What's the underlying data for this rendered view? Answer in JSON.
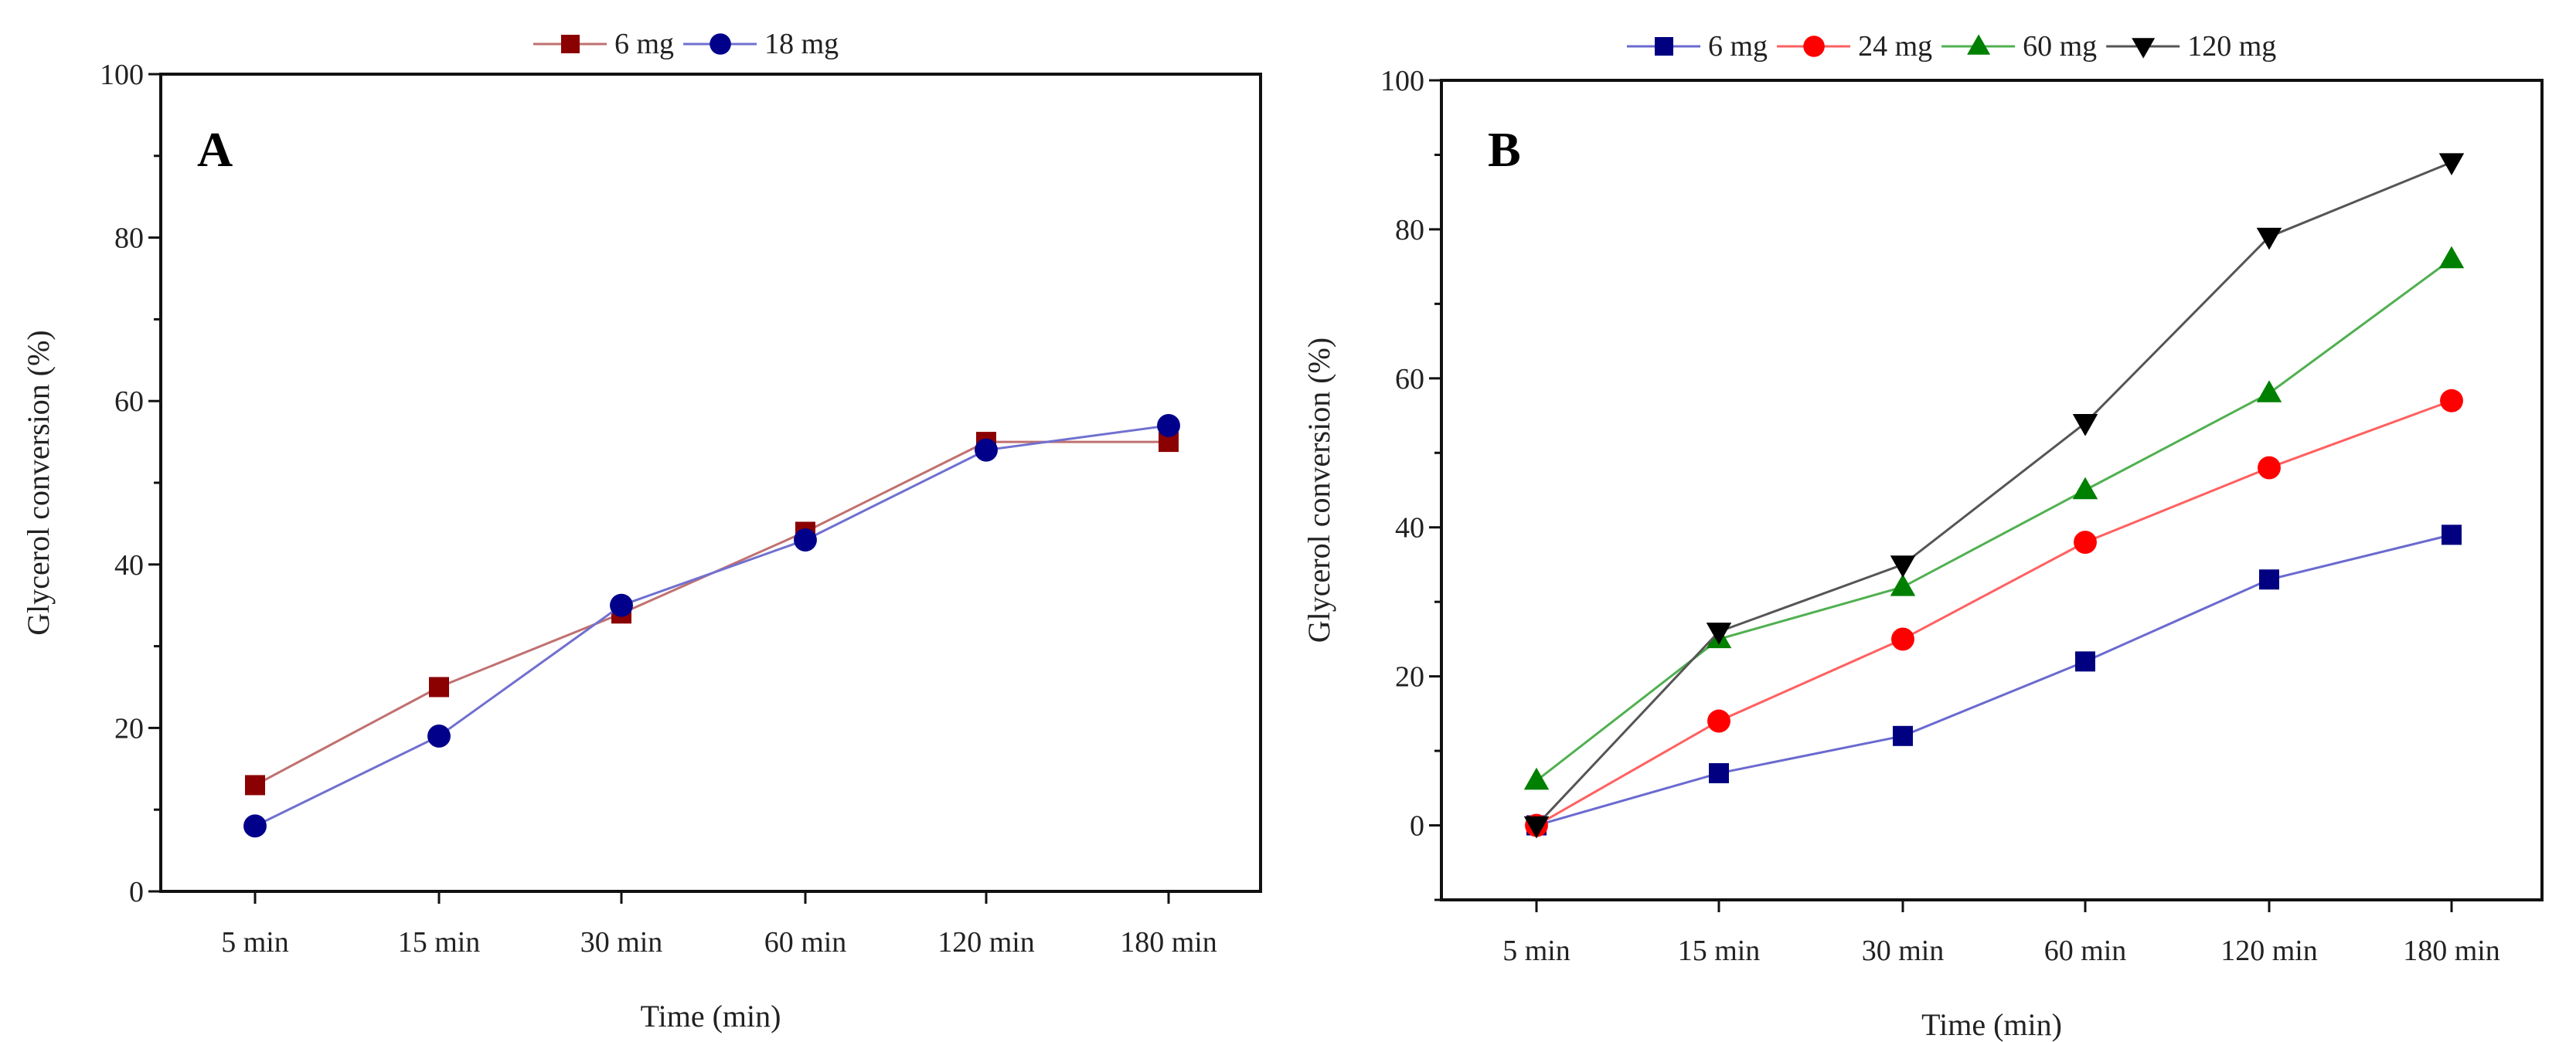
{
  "chart_data": [
    {
      "type": "line",
      "panel_label": "A",
      "xlabel": "Time (min)",
      "ylabel": "Glycerol conversion (%)",
      "categories": [
        "5 min",
        "15 min",
        "30 min",
        "60 min",
        "120 min",
        "180 min"
      ],
      "ylim": [
        0,
        100
      ],
      "yticks": [
        0,
        20,
        40,
        60,
        80,
        100
      ],
      "grid": false,
      "legend_position": "top-center",
      "series": [
        {
          "name": "6 mg",
          "marker": "square",
          "color": "#8b0000",
          "line_color": "#c07070",
          "values": [
            13,
            25,
            34,
            44,
            55,
            55
          ]
        },
        {
          "name": "18 mg",
          "marker": "circle",
          "color": "#00008b",
          "line_color": "#7070d0",
          "values": [
            8,
            19,
            35,
            43,
            54,
            57
          ]
        }
      ]
    },
    {
      "type": "line",
      "panel_label": "B",
      "xlabel": "Time (min)",
      "ylabel": "Glycerol conversion (%)",
      "categories": [
        "5 min",
        "15 min",
        "30 min",
        "60 min",
        "120 min",
        "180 min"
      ],
      "ylim": [
        -10,
        100
      ],
      "yticks": [
        0,
        20,
        40,
        60,
        80,
        100
      ],
      "grid": false,
      "legend_position": "top-center",
      "series": [
        {
          "name": "6 mg",
          "marker": "square",
          "color": "#000080",
          "line_color": "#6a6ad0",
          "values": [
            0,
            7,
            12,
            22,
            33,
            39
          ]
        },
        {
          "name": "24 mg",
          "marker": "circle",
          "color": "#ff0000",
          "line_color": "#ff6060",
          "values": [
            0,
            14,
            25,
            38,
            48,
            57
          ]
        },
        {
          "name": "60 mg",
          "marker": "triangle-up",
          "color": "#008000",
          "line_color": "#50b050",
          "values": [
            6,
            25,
            32,
            45,
            58,
            76
          ]
        },
        {
          "name": "120 mg",
          "marker": "triangle-down",
          "color": "#000000",
          "line_color": "#555555",
          "values": [
            0,
            26,
            35,
            54,
            79,
            89
          ]
        }
      ]
    }
  ]
}
